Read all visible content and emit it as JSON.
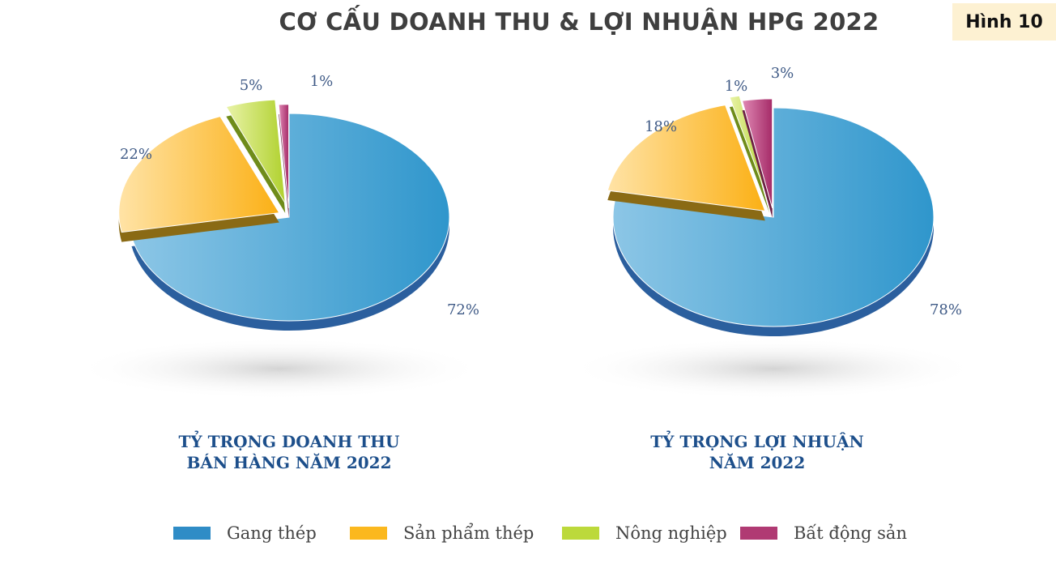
{
  "header": {
    "title": "CƠ CẤU DOANH THU & LỢI NHUẬN HPG 2022",
    "figure_label": "Hình 10"
  },
  "chart_data": [
    {
      "type": "pie",
      "title_lines": [
        "TỶ TRỌNG DOANH THU",
        "BÁN HÀNG NĂM 2022"
      ],
      "categories": [
        "Gang thép",
        "Sản phẩm thép",
        "Nông nghiệp",
        "Bất động sản"
      ],
      "values": [
        72,
        22,
        5,
        1
      ],
      "labels": [
        "72%",
        "22%",
        "5%",
        "1%"
      ]
    },
    {
      "type": "pie",
      "title_lines": [
        "TỶ TRỌNG LỢI NHUẬN",
        "NĂM 2022"
      ],
      "categories": [
        "Gang thép",
        "Sản phẩm thép",
        "Nông nghiệp",
        "Bất động sản"
      ],
      "values": [
        78,
        18,
        1,
        3
      ],
      "labels": [
        "78%",
        "18%",
        "1%",
        "3%"
      ]
    }
  ],
  "legend": {
    "items": [
      {
        "label": "Gang thép",
        "color": "#2f8cc6"
      },
      {
        "label": "Sản phẩm thép",
        "color": "#fbb81e"
      },
      {
        "label": "Nông nghiệp",
        "color": "#bcd93b"
      },
      {
        "label": "Bất động sản",
        "color": "#b03a73"
      }
    ]
  }
}
